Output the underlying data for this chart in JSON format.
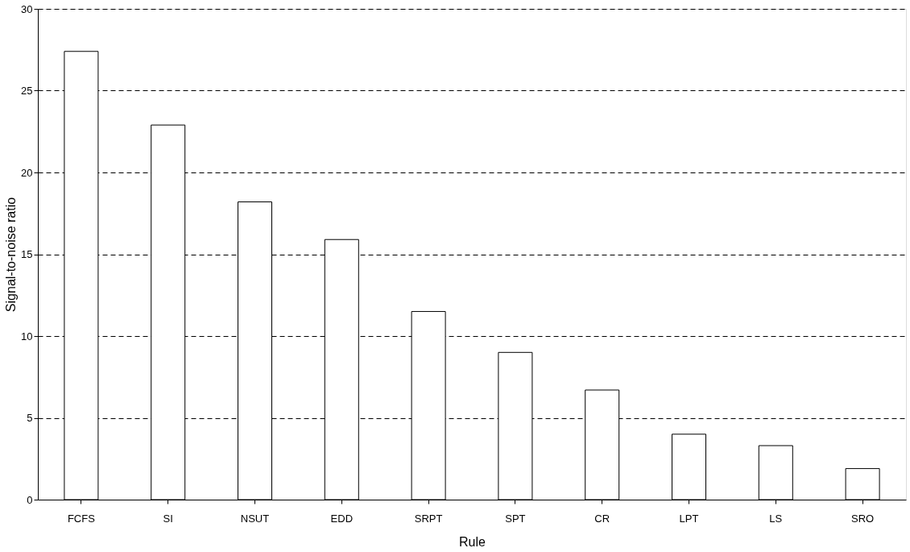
{
  "chart_data": {
    "type": "bar",
    "xlabel": "Rule",
    "ylabel": "Signal-to-noise ratio",
    "categories": [
      "FCFS",
      "SI",
      "NSUT",
      "EDD",
      "SRPT",
      "SPT",
      "CR",
      "LPT",
      "LS",
      "SRO"
    ],
    "values": [
      27.4,
      22.9,
      18.2,
      15.9,
      11.5,
      9.0,
      6.7,
      4.0,
      3.3,
      1.9
    ],
    "color": "#ffffff",
    "ylim": [
      0,
      30
    ],
    "yticks": [
      0,
      5,
      10,
      15,
      20,
      25,
      30
    ],
    "grid": "y"
  }
}
